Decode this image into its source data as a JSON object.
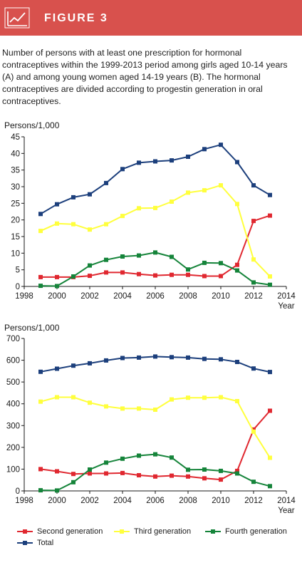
{
  "figure": {
    "label": "FIGURE 3",
    "caption": "Number of persons with at least one prescription for hormonal contraceptives within the 1999-2013 period among girls aged 10-14 years (A) and among young women aged 14-19 years (B). The hormonal contraceptives are divided according to progestin generation in oral contraceptives."
  },
  "colors": {
    "banner": "#d8514d",
    "second": "#e02830",
    "third": "#ffff3d",
    "fourth": "#15843a",
    "total": "#1c3f7c"
  },
  "legend": {
    "second": "Second generation",
    "third": "Third generation",
    "fourth": "Fourth generation",
    "total": "Total"
  },
  "chart_data": [
    {
      "type": "line",
      "ylabel": "Persons/1,000",
      "xlabel": "Year",
      "ylim": [
        0,
        45
      ],
      "xlim": [
        1998,
        2014
      ],
      "yticks": [
        0,
        5,
        10,
        15,
        20,
        25,
        30,
        35,
        40,
        45
      ],
      "xticks": [
        1998,
        2000,
        2002,
        2004,
        2006,
        2008,
        2010,
        2012,
        2014
      ],
      "x": [
        1999,
        2000,
        2001,
        2002,
        2003,
        2004,
        2005,
        2006,
        2007,
        2008,
        2009,
        2010,
        2011,
        2012,
        2013
      ],
      "series": [
        {
          "name": "Second generation",
          "key": "second",
          "values": [
            2.8,
            2.8,
            2.8,
            3.2,
            4.2,
            4.2,
            3.7,
            3.3,
            3.5,
            3.5,
            3.1,
            3.1,
            6.5,
            19.7,
            21.3
          ]
        },
        {
          "name": "Third generation",
          "key": "third",
          "values": [
            16.7,
            18.9,
            18.7,
            17.1,
            18.7,
            21.2,
            23.5,
            23.6,
            25.5,
            28.2,
            28.9,
            30.4,
            24.8,
            8.1,
            3.0
          ]
        },
        {
          "name": "Fourth generation",
          "key": "fourth",
          "values": [
            0.2,
            0.1,
            3.0,
            6.3,
            8.0,
            9.0,
            9.3,
            10.2,
            8.9,
            5.1,
            7.1,
            7.0,
            4.8,
            1.2,
            0.5
          ]
        },
        {
          "name": "Total",
          "key": "total",
          "values": [
            21.8,
            24.7,
            26.8,
            27.7,
            31.1,
            35.3,
            37.2,
            37.6,
            37.9,
            39.0,
            41.3,
            42.6,
            37.4,
            30.4,
            27.5
          ]
        }
      ]
    },
    {
      "type": "line",
      "ylabel": "Persons/1,000",
      "xlabel": "Year",
      "ylim": [
        0,
        700
      ],
      "xlim": [
        1998,
        2014
      ],
      "yticks": [
        0,
        100,
        200,
        300,
        400,
        500,
        600,
        700
      ],
      "xticks": [
        1998,
        2000,
        2002,
        2004,
        2006,
        2008,
        2010,
        2012,
        2014
      ],
      "x": [
        1999,
        2000,
        2001,
        2002,
        2003,
        2004,
        2005,
        2006,
        2007,
        2008,
        2009,
        2010,
        2011,
        2012,
        2013
      ],
      "series": [
        {
          "name": "Second generation",
          "key": "second",
          "values": [
            100,
            90,
            78,
            80,
            80,
            82,
            72,
            66,
            70,
            66,
            58,
            52,
            92,
            282,
            368
          ]
        },
        {
          "name": "Third generation",
          "key": "third",
          "values": [
            410,
            430,
            430,
            405,
            388,
            378,
            378,
            373,
            420,
            428,
            428,
            430,
            412,
            272,
            152
          ]
        },
        {
          "name": "Fourth generation",
          "key": "fourth",
          "values": [
            3,
            2,
            40,
            98,
            130,
            148,
            162,
            168,
            153,
            97,
            98,
            92,
            80,
            42,
            22
          ]
        },
        {
          "name": "Total",
          "key": "total",
          "values": [
            547,
            561,
            575,
            586,
            599,
            610,
            612,
            617,
            614,
            612,
            606,
            604,
            592,
            562,
            546
          ]
        }
      ]
    }
  ]
}
